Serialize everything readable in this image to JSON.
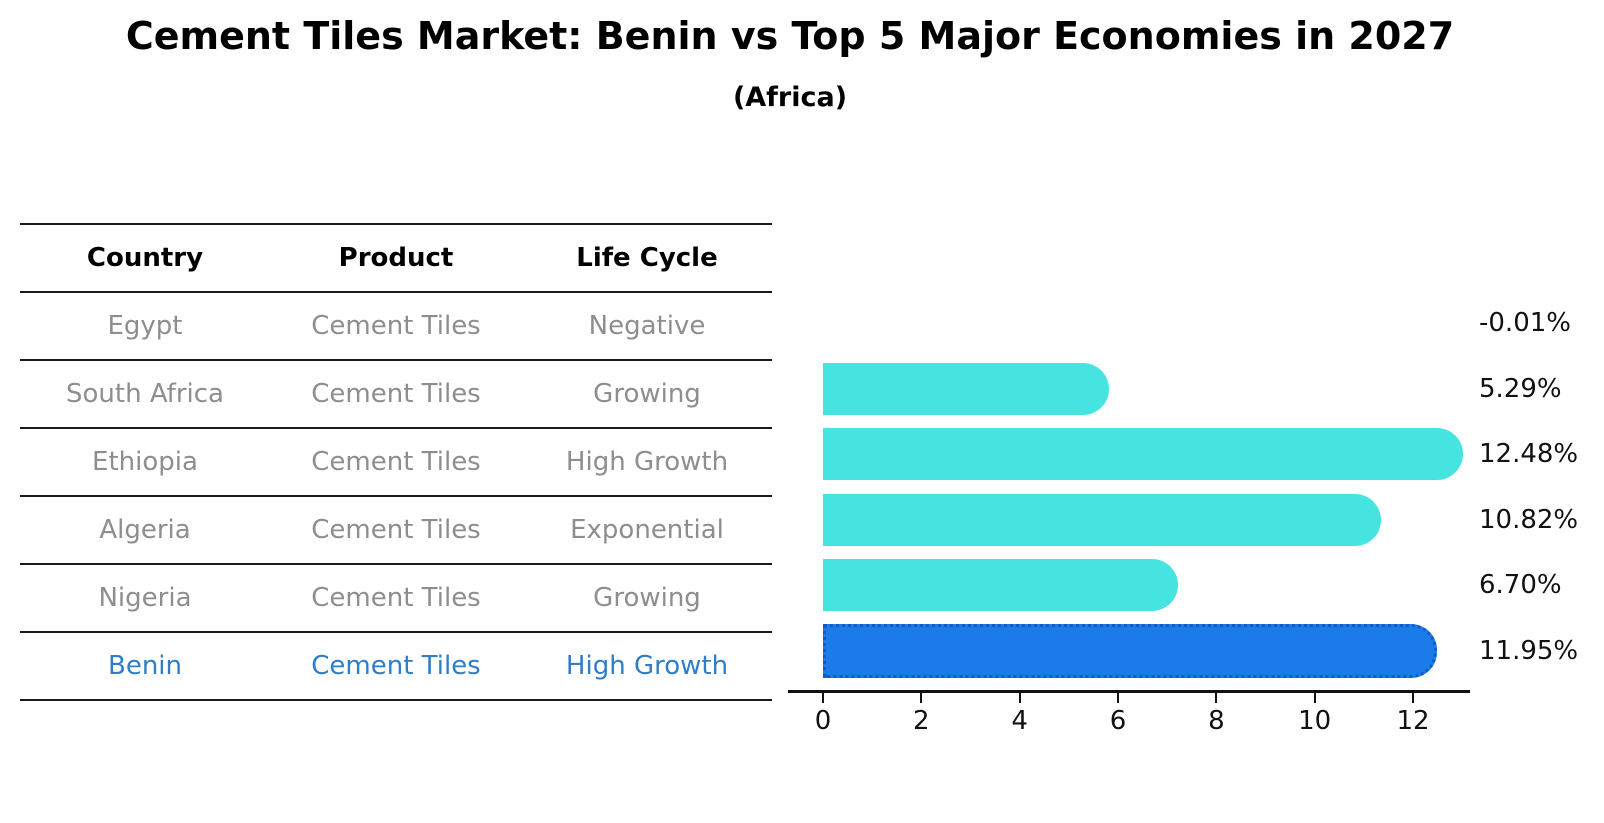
{
  "title": "Cement Tiles Market: Benin vs Top 5 Major Economies in 2027",
  "subtitle": "(Africa)",
  "table": {
    "headers": [
      "Country",
      "Product",
      "Life Cycle"
    ],
    "rows": [
      {
        "country": "Egypt",
        "product": "Cement Tiles",
        "life_cycle": "Negative",
        "highlight": false
      },
      {
        "country": "South Africa",
        "product": "Cement Tiles",
        "life_cycle": "Growing",
        "highlight": false
      },
      {
        "country": "Ethiopia",
        "product": "Cement Tiles",
        "life_cycle": "High Growth",
        "highlight": false
      },
      {
        "country": "Algeria",
        "product": "Cement Tiles",
        "life_cycle": "Exponential",
        "highlight": false
      },
      {
        "country": "Nigeria",
        "product": "Cement Tiles",
        "life_cycle": "Growing",
        "highlight": true
      }
    ],
    "highlight_row": {
      "country": "Benin",
      "product": "Cement Tiles",
      "life_cycle": "High Growth"
    }
  },
  "chart_data": {
    "type": "bar",
    "orientation": "horizontal",
    "title": "Cement Tiles Market: Benin vs Top 5 Major Economies in 2027",
    "subtitle": "(Africa)",
    "categories": [
      "Egypt",
      "South Africa",
      "Ethiopia",
      "Algeria",
      "Nigeria",
      "Benin"
    ],
    "values": [
      -0.01,
      5.29,
      12.48,
      10.82,
      6.7,
      11.95
    ],
    "value_labels": [
      "-0.01%",
      "5.29%",
      "12.48%",
      "10.82%",
      "6.70%",
      "11.95%"
    ],
    "xlabel": "",
    "ylabel": "",
    "x_ticks": [
      0,
      2,
      4,
      6,
      8,
      10,
      12
    ],
    "xlim": [
      -0.71,
      13.16
    ],
    "grid": false,
    "legend": false,
    "highlight_index": 5,
    "colors": {
      "bar": "#45e4e1",
      "highlight_bar": "#1b7be8",
      "highlight_border": "#125ac8",
      "highlight_text": "#2e7ec9",
      "muted_text": "#8e8e8e",
      "axis": "#111111"
    }
  }
}
